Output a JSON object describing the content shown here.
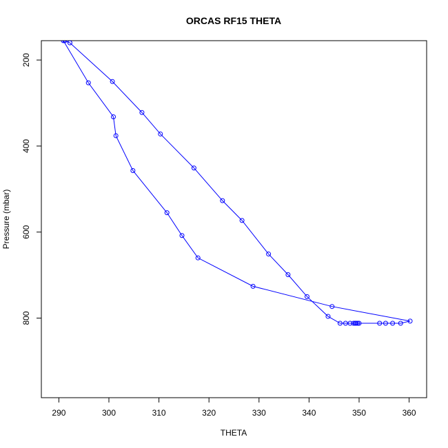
{
  "chart_data": {
    "type": "line",
    "title": "ORCAS RF15 THETA",
    "xlabel": "THETA",
    "ylabel": "Pressure (mbar)",
    "xlim": [
      286.5,
      363.5
    ],
    "ylim": [
      985,
      155
    ],
    "y_reversed": true,
    "x_ticks": [
      290,
      300,
      310,
      320,
      330,
      340,
      350,
      360
    ],
    "y_ticks": [
      200,
      400,
      600,
      800
    ],
    "x_tick_labels": [
      "290",
      "300",
      "310",
      "320",
      "330",
      "340",
      "350",
      "360"
    ],
    "y_tick_labels": [
      "200",
      "400",
      "600",
      "800"
    ],
    "grid": false,
    "marker": "open-circle",
    "colors": {
      "line": "#0000ff",
      "axes": "#000000",
      "background": "#ffffff"
    },
    "series": [
      {
        "values": [
          [
            291.2,
            155
          ],
          [
            292.2,
            160
          ],
          [
            300.7,
            250
          ],
          [
            306.6,
            322
          ],
          [
            310.3,
            372
          ],
          [
            317.0,
            451
          ],
          [
            322.7,
            527
          ],
          [
            326.6,
            573
          ],
          [
            331.9,
            651
          ],
          [
            335.8,
            699
          ],
          [
            339.6,
            750
          ],
          [
            343.8,
            796
          ],
          [
            346.2,
            812
          ],
          [
            347.3,
            812
          ],
          [
            348.2,
            812
          ],
          [
            348.9,
            812
          ],
          [
            349.2,
            812
          ],
          [
            349.4,
            812
          ],
          [
            349.7,
            812
          ],
          [
            350.0,
            812
          ],
          [
            354.1,
            812
          ],
          [
            355.3,
            812
          ],
          [
            356.7,
            812
          ],
          [
            358.3,
            812
          ],
          [
            360.2,
            807
          ],
          [
            344.6,
            773
          ],
          [
            328.8,
            726
          ],
          [
            317.8,
            660
          ],
          [
            314.6,
            608
          ],
          [
            311.6,
            555
          ],
          [
            304.8,
            457
          ],
          [
            301.4,
            376
          ],
          [
            300.9,
            332
          ],
          [
            295.9,
            253
          ],
          [
            290.9,
            155
          ]
        ]
      }
    ]
  }
}
